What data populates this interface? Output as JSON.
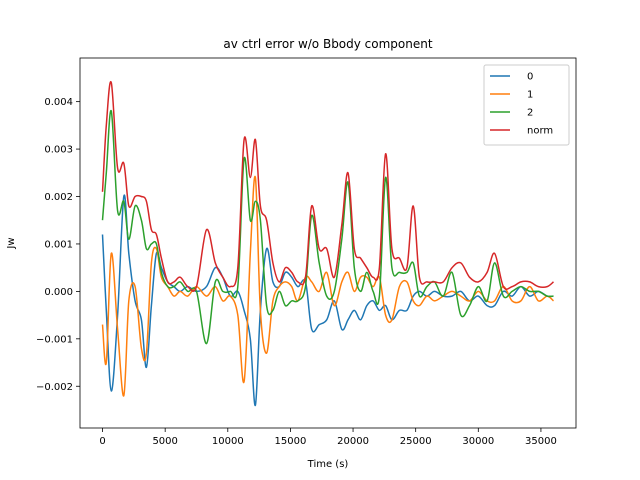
{
  "chart_data": {
    "type": "line",
    "title": "av ctrl error w/o Bbody component",
    "xlabel": "Time (s)",
    "ylabel": "Jw",
    "xlim": [
      -1800,
      37800
    ],
    "ylim": [
      -0.00288,
      0.00492
    ],
    "xticks": [
      0,
      5000,
      10000,
      15000,
      20000,
      25000,
      30000,
      35000
    ],
    "xtick_labels": [
      "0",
      "5000",
      "10000",
      "15000",
      "20000",
      "25000",
      "30000",
      "35000"
    ],
    "yticks": [
      -0.002,
      -0.001,
      0.0,
      0.001,
      0.002,
      0.003,
      0.004
    ],
    "ytick_labels": [
      "−0.002",
      "−0.001",
      "0.000",
      "0.001",
      "0.002",
      "0.003",
      "0.004"
    ],
    "legend_position": "top-right",
    "colors": {
      "0": "#1f77b4",
      "1": "#ff7f0e",
      "2": "#2ca02c",
      "norm": "#d62728"
    },
    "series": [
      {
        "name": "0",
        "color": "#1f77b4",
        "x": [
          0,
          300,
          700,
          1200,
          1700,
          2100,
          2600,
          3100,
          3500,
          3900,
          4300,
          4700,
          5200,
          5700,
          6200,
          6800,
          7500,
          8300,
          9000,
          9600,
          10200,
          10800,
          11300,
          11800,
          12200,
          12600,
          13100,
          13600,
          14100,
          14600,
          15100,
          15600,
          16200,
          16700,
          17300,
          17900,
          18500,
          19100,
          19600,
          20100,
          20600,
          21100,
          21600,
          22100,
          22600,
          23100,
          23700,
          24300,
          24800,
          25300,
          25900,
          26500,
          27200,
          27900,
          28600,
          29300,
          30000,
          30700,
          31300,
          32000,
          32700,
          33400,
          34100,
          34800,
          35500,
          36000
        ],
        "y": [
          0.0012,
          -0.0004,
          -0.0021,
          -0.0005,
          0.002,
          0.0008,
          -0.0002,
          -0.0006,
          -0.0016,
          -0.0003,
          0.0008,
          0.0005,
          0.0002,
          0.0001,
          0.0,
          0.0001,
          0.0,
          0.0001,
          0.0005,
          0.0003,
          -0.0001,
          0.0,
          -0.0004,
          -0.001,
          -0.0024,
          -0.0004,
          0.0009,
          0.0002,
          0.0001,
          0.0004,
          0.0003,
          0.0001,
          0.0002,
          -0.0008,
          -0.0007,
          -0.0006,
          -0.0002,
          -0.0008,
          -0.0006,
          -0.0004,
          -0.0006,
          -0.0003,
          -0.0002,
          -0.0004,
          -0.0003,
          -0.0006,
          -0.0004,
          -0.0004,
          -0.0001,
          0.0,
          -0.0001,
          0.0,
          -0.0001,
          -0.0001,
          0.0,
          -0.0002,
          -0.0001,
          -0.0003,
          -0.0003,
          0.0,
          -0.0001,
          0.0001,
          -0.0001,
          0.0,
          -0.0001,
          -0.0001
        ]
      },
      {
        "name": "1",
        "color": "#ff7f0e",
        "x": [
          0,
          300,
          700,
          1200,
          1700,
          2100,
          2600,
          3100,
          3500,
          3900,
          4300,
          4700,
          5200,
          5700,
          6200,
          6800,
          7500,
          8300,
          9000,
          9600,
          10200,
          10800,
          11300,
          11800,
          12200,
          12600,
          13100,
          13600,
          14100,
          14600,
          15100,
          15600,
          16200,
          16700,
          17300,
          17900,
          18500,
          19100,
          19600,
          20100,
          20600,
          21100,
          21600,
          22100,
          22600,
          23100,
          23700,
          24300,
          24800,
          25300,
          25900,
          26500,
          27200,
          27900,
          28600,
          29300,
          30000,
          30700,
          31300,
          32000,
          32700,
          33400,
          34100,
          34800,
          35500,
          36000
        ],
        "y": [
          -0.0007,
          -0.0015,
          0.0008,
          -0.0008,
          -0.0022,
          -0.0002,
          0.0001,
          -0.0012,
          -0.0013,
          0.0006,
          0.0009,
          0.0003,
          0.0001,
          -0.0001,
          0.0,
          -0.0001,
          0.0001,
          -0.0001,
          0.0001,
          -0.0002,
          -0.0001,
          -0.0005,
          -0.0019,
          0.0008,
          0.0024,
          -0.0004,
          -0.0013,
          -0.0002,
          0.0001,
          0.0002,
          0.0001,
          -0.0002,
          0.0003,
          0.0002,
          0.0,
          0.0004,
          -0.0003,
          0.0002,
          0.0004,
          0.0,
          0.0003,
          0.0003,
          0.0001,
          0.0003,
          -0.0005,
          -0.0006,
          0.0001,
          0.0002,
          -0.0002,
          -0.0003,
          -0.0001,
          -0.0002,
          -0.0001,
          0.0,
          -0.0001,
          -0.0002,
          0.0,
          -0.0002,
          -0.0002,
          0.0001,
          -0.0002,
          -0.0002,
          0.0001,
          -0.0002,
          -0.0001,
          -0.0002
        ]
      },
      {
        "name": "2",
        "color": "#2ca02c",
        "x": [
          0,
          300,
          700,
          1200,
          1700,
          2100,
          2600,
          3100,
          3500,
          3900,
          4300,
          4700,
          5200,
          5700,
          6200,
          6800,
          7500,
          8300,
          9000,
          9600,
          10200,
          10800,
          11300,
          11800,
          12200,
          12600,
          13100,
          13600,
          14100,
          14600,
          15100,
          15600,
          16200,
          16700,
          17300,
          17900,
          18500,
          19100,
          19600,
          20100,
          20600,
          21100,
          21600,
          22100,
          22600,
          23100,
          23700,
          24300,
          24800,
          25300,
          25900,
          26500,
          27200,
          27900,
          28600,
          29300,
          30000,
          30700,
          31300,
          32000,
          32700,
          33400,
          34100,
          34800,
          35500,
          36000
        ],
        "y": [
          0.0015,
          0.0025,
          0.0038,
          0.0017,
          0.0019,
          0.0011,
          0.0018,
          0.0015,
          0.0009,
          0.001,
          0.001,
          0.0004,
          0.0001,
          0.0001,
          0.0002,
          0.0,
          0.0,
          -0.0011,
          0.0002,
          0.0,
          0.0,
          0.0001,
          0.0028,
          0.0015,
          0.0019,
          0.0015,
          -0.0003,
          -0.0004,
          0.0,
          -0.0003,
          -0.0002,
          -0.0002,
          0.0001,
          0.0016,
          0.0006,
          -0.0001,
          0.0,
          0.0011,
          0.0023,
          0.0005,
          0.0,
          0.0004,
          0.0,
          -0.0001,
          0.0024,
          0.0005,
          0.0004,
          0.0004,
          0.0006,
          -0.0001,
          0.0001,
          0.0002,
          -0.0001,
          0.0004,
          -0.0005,
          -0.0003,
          0.0001,
          -0.0002,
          0.0006,
          -0.0001,
          0.0,
          0.0001,
          0.0,
          0.0,
          -0.0001,
          -0.0001
        ]
      },
      {
        "name": "norm",
        "color": "#d62728",
        "x": [
          0,
          300,
          700,
          1200,
          1700,
          2100,
          2600,
          3100,
          3500,
          3900,
          4300,
          4700,
          5200,
          5700,
          6200,
          6800,
          7500,
          8300,
          9000,
          9600,
          10200,
          10800,
          11300,
          11800,
          12200,
          12600,
          13100,
          13600,
          14100,
          14600,
          15100,
          15600,
          16200,
          16700,
          17300,
          17900,
          18500,
          19100,
          19600,
          20100,
          20600,
          21100,
          21600,
          22100,
          22600,
          23100,
          23700,
          24300,
          24800,
          25300,
          25900,
          26500,
          27200,
          27900,
          28600,
          29300,
          30000,
          30700,
          31300,
          32000,
          32700,
          33400,
          34100,
          34800,
          35500,
          36000
        ],
        "y": [
          0.0021,
          0.0035,
          0.0044,
          0.0026,
          0.0027,
          0.0018,
          0.002,
          0.002,
          0.0019,
          0.0013,
          0.0012,
          0.0007,
          0.0002,
          0.0002,
          0.0003,
          0.0001,
          0.0001,
          0.0013,
          0.0006,
          0.0003,
          0.0001,
          0.0005,
          0.0032,
          0.0024,
          0.0032,
          0.0018,
          0.0015,
          0.0006,
          0.0002,
          0.0005,
          0.0004,
          0.0002,
          0.0003,
          0.0018,
          0.0009,
          0.0009,
          0.0003,
          0.0014,
          0.0025,
          0.0009,
          0.0007,
          0.0005,
          0.0003,
          0.0005,
          0.0029,
          0.0009,
          0.0007,
          0.0005,
          0.0018,
          0.0003,
          0.0002,
          0.0002,
          0.0002,
          0.0005,
          0.0006,
          0.0003,
          0.0002,
          0.0004,
          0.0008,
          0.0001,
          0.0001,
          0.0002,
          0.0002,
          0.0001,
          0.0001,
          0.0002
        ]
      }
    ]
  }
}
